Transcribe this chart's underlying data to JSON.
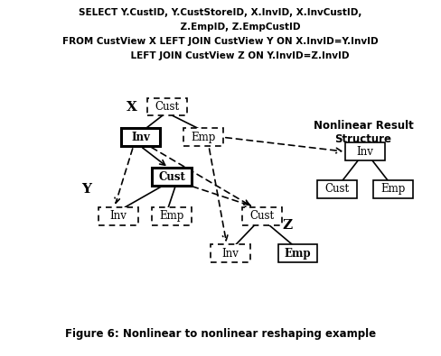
{
  "title": "Figure 6: Nonlinear to nonlinear reshaping example",
  "sql_lines": [
    "SELECT Y.CustID, Y.CustStoreID, X.InvID, X.InvCustID,",
    "            Z.EmpID, Z.EmpCustID",
    "FROM CustView X LEFT JOIN CustView Y ON X.InvID=Y.InvID",
    "            LEFT JOIN CustView Z ON Y.InvID=Z.InvID"
  ],
  "nonlinear_title": "Nonlinear Result\nStructure",
  "background_color": "#ffffff",
  "box_facecolor": "#ffffff",
  "box_edgecolor": "#000000"
}
